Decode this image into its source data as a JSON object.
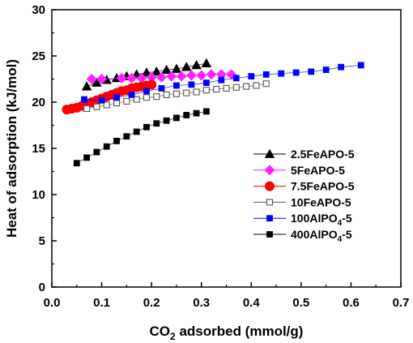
{
  "chart_data": {
    "type": "scatter",
    "xlabel": {
      "main": "CO",
      "sub": "2",
      "rest": " adsorbed (mmol/g)"
    },
    "ylabel": "Heat of adsorption (kJ/mol)",
    "xlim": [
      0.0,
      0.7
    ],
    "ylim": [
      0,
      30
    ],
    "xticks": [
      0.0,
      0.1,
      0.2,
      0.3,
      0.4,
      0.5,
      0.6,
      0.7
    ],
    "xtick_labels": [
      "0.0",
      "0.1",
      "0.2",
      "0.3",
      "0.4",
      "0.5",
      "0.6",
      "0.7"
    ],
    "yticks": [
      0,
      5,
      10,
      15,
      20,
      25,
      30
    ],
    "ytick_labels": [
      "0",
      "5",
      "10",
      "15",
      "20",
      "25",
      "30"
    ],
    "grid": false,
    "legend_position": "right-middle",
    "series": [
      {
        "name": "2.5FeAPO-5",
        "label": {
          "main": "2.5FeAPO-5",
          "sub": "",
          "rest": ""
        },
        "marker": "triangle",
        "filled": true,
        "color": "#000000",
        "x": [
          0.07,
          0.09,
          0.11,
          0.13,
          0.15,
          0.17,
          0.19,
          0.21,
          0.23,
          0.25,
          0.27,
          0.29,
          0.31
        ],
        "y": [
          21.7,
          22.1,
          22.4,
          22.6,
          22.8,
          23.0,
          23.2,
          23.3,
          23.5,
          23.6,
          23.8,
          24.0,
          24.2
        ]
      },
      {
        "name": "5FeAPO-5",
        "label": {
          "main": "5FeAPO-5",
          "sub": "",
          "rest": ""
        },
        "marker": "diamond",
        "filled": true,
        "color": "#ff22ff",
        "x": [
          0.08,
          0.1,
          0.14,
          0.16,
          0.18,
          0.2,
          0.22,
          0.24,
          0.26,
          0.28,
          0.3,
          0.32,
          0.34,
          0.36
        ],
        "y": [
          22.5,
          22.5,
          22.6,
          22.6,
          22.6,
          22.7,
          22.7,
          22.8,
          22.8,
          22.9,
          22.9,
          23.0,
          23.0,
          23.0
        ]
      },
      {
        "name": "7.5FeAPO-5",
        "label": {
          "main": "7.5FeAPO-5",
          "sub": "",
          "rest": ""
        },
        "marker": "circle",
        "filled": true,
        "color": "#ff0000",
        "x": [
          0.03,
          0.04,
          0.05,
          0.06,
          0.07,
          0.08,
          0.09,
          0.1,
          0.11,
          0.12,
          0.13,
          0.14,
          0.15,
          0.16,
          0.17,
          0.18,
          0.19,
          0.2
        ],
        "y": [
          19.2,
          19.3,
          19.4,
          19.6,
          19.8,
          20.0,
          20.2,
          20.4,
          20.6,
          20.8,
          21.0,
          21.2,
          21.3,
          21.5,
          21.6,
          21.7,
          21.8,
          21.9
        ]
      },
      {
        "name": "10FeAPO-5",
        "label": {
          "main": "10FeAPO-5",
          "sub": "",
          "rest": ""
        },
        "marker": "square",
        "filled": false,
        "color": "#555555",
        "x": [
          0.07,
          0.09,
          0.11,
          0.13,
          0.15,
          0.17,
          0.19,
          0.21,
          0.23,
          0.25,
          0.27,
          0.29,
          0.31,
          0.33,
          0.35,
          0.37,
          0.39,
          0.41,
          0.43
        ],
        "y": [
          19.3,
          19.5,
          19.7,
          19.9,
          20.1,
          20.3,
          20.5,
          20.6,
          20.8,
          20.9,
          21.0,
          21.1,
          21.3,
          21.4,
          21.5,
          21.6,
          21.7,
          21.8,
          22.0
        ]
      },
      {
        "name": "100AlPO4-5",
        "label": {
          "main": "100AlPO",
          "sub": "4",
          "rest": "-5"
        },
        "marker": "square",
        "filled": true,
        "color": "#0000ff",
        "x": [
          0.065,
          0.1,
          0.13,
          0.16,
          0.19,
          0.22,
          0.25,
          0.28,
          0.31,
          0.34,
          0.37,
          0.4,
          0.43,
          0.46,
          0.49,
          0.52,
          0.55,
          0.58,
          0.62
        ],
        "y": [
          20.3,
          20.2,
          20.5,
          20.8,
          21.2,
          21.5,
          21.8,
          21.9,
          22.1,
          22.4,
          22.6,
          22.8,
          23.0,
          23.1,
          23.2,
          23.3,
          23.5,
          23.8,
          24.0
        ]
      },
      {
        "name": "400AlPO4-5",
        "label": {
          "main": "400AlPO",
          "sub": "4",
          "rest": "-5"
        },
        "marker": "square",
        "filled": true,
        "color": "#000000",
        "x": [
          0.05,
          0.07,
          0.09,
          0.11,
          0.13,
          0.15,
          0.17,
          0.19,
          0.21,
          0.23,
          0.25,
          0.27,
          0.29,
          0.31
        ],
        "y": [
          13.4,
          14.0,
          14.6,
          15.2,
          15.8,
          16.3,
          16.8,
          17.3,
          17.7,
          18.0,
          18.3,
          18.6,
          18.8,
          19.0
        ]
      }
    ]
  }
}
